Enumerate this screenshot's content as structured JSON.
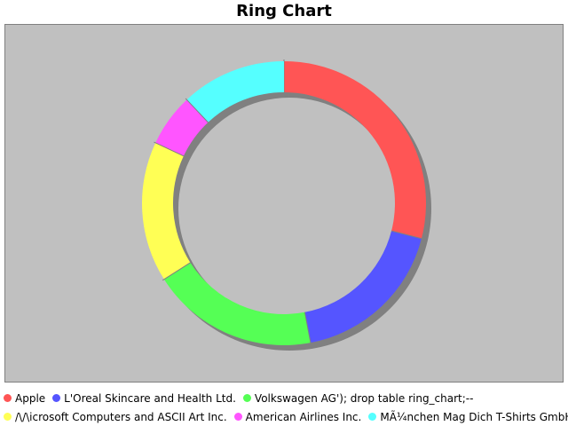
{
  "chart_data": {
    "type": "pie",
    "title": "Ring Chart",
    "series": [
      {
        "name": "Apple",
        "value": 29,
        "color": "#ff5555"
      },
      {
        "name": "L'Oreal Skincare and Health Ltd.",
        "value": 18,
        "color": "#5555ff"
      },
      {
        "name": "Volkswagen AG'); drop table ring_chart;--",
        "value": 19,
        "color": "#55ff55"
      },
      {
        "name": "/\\/\\icrosoft Computers and ASCII Art Inc.",
        "value": 16,
        "color": "#ffff55"
      },
      {
        "name": "American Airlines Inc.",
        "value": 6,
        "color": "#ff55ff"
      },
      {
        "name": "MÃ¼nchen Mag Dich T-Shirts GmbH",
        "value": 12,
        "color": "#55ffff"
      }
    ],
    "legend_position": "bottom",
    "background": "#c0c0c0"
  }
}
